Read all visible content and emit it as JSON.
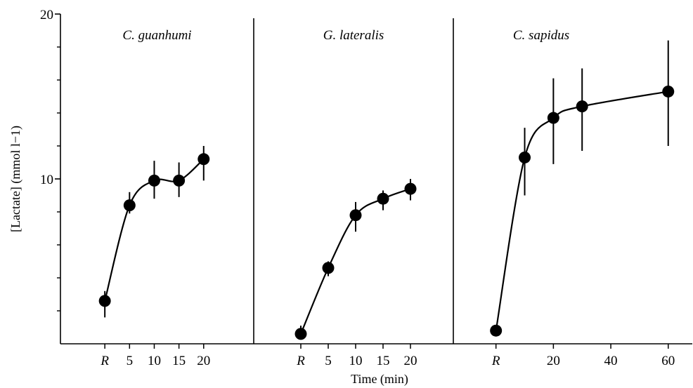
{
  "chart_data": {
    "type": "scatter",
    "ylabel": "[Lactate] (mmol l−1)",
    "xlabel": "Time (min)",
    "ylim": [
      0,
      20
    ],
    "yticks_labeled": [
      "10",
      "20"
    ],
    "y_minor_ticks": [
      2,
      4,
      6,
      8,
      12,
      14,
      16,
      18
    ],
    "grid": false,
    "fitted_curve": true,
    "panels": [
      {
        "title": "C. guanhumi",
        "xtick_labels": [
          "R",
          "5",
          "10",
          "15",
          "20"
        ],
        "xticks": [
          0,
          5,
          10,
          15,
          20
        ],
        "xlim": [
          -5,
          27
        ],
        "points": [
          {
            "x": 0,
            "y": 2.6,
            "err_low": 1.6,
            "err_high": 3.2
          },
          {
            "x": 5,
            "y": 8.4,
            "err_low": 7.9,
            "err_high": 9.2
          },
          {
            "x": 10,
            "y": 9.9,
            "err_low": 8.8,
            "err_high": 11.1
          },
          {
            "x": 15,
            "y": 9.9,
            "err_low": 8.9,
            "err_high": 11.0
          },
          {
            "x": 20,
            "y": 11.2,
            "err_low": 9.9,
            "err_high": 12.0
          }
        ]
      },
      {
        "title": "G. lateralis",
        "xtick_labels": [
          "R",
          "5",
          "10",
          "15",
          "20"
        ],
        "xticks": [
          0,
          5,
          10,
          15,
          20
        ],
        "xlim": [
          -5,
          25
        ],
        "points": [
          {
            "x": 0,
            "y": 0.6,
            "err_low": 0.3,
            "err_high": 1.1
          },
          {
            "x": 5,
            "y": 4.6,
            "err_low": 4.1,
            "err_high": 5.0
          },
          {
            "x": 10,
            "y": 7.8,
            "err_low": 6.8,
            "err_high": 8.6
          },
          {
            "x": 15,
            "y": 8.8,
            "err_low": 8.1,
            "err_high": 9.3
          },
          {
            "x": 20,
            "y": 9.4,
            "err_low": 8.7,
            "err_high": 10.0
          }
        ]
      },
      {
        "title": "C. sapidus",
        "xtick_labels": [
          "R",
          "20",
          "40",
          "60"
        ],
        "xticks": [
          0,
          20,
          40,
          60
        ],
        "xlim": [
          -8,
          63
        ],
        "points": [
          {
            "x": 0,
            "y": 0.8,
            "err_low": 0.5,
            "err_high": 1.0
          },
          {
            "x": 10,
            "y": 11.3,
            "err_low": 9.0,
            "err_high": 13.1
          },
          {
            "x": 20,
            "y": 13.7,
            "err_low": 10.9,
            "err_high": 16.1
          },
          {
            "x": 30,
            "y": 14.4,
            "err_low": 11.7,
            "err_high": 16.7
          },
          {
            "x": 60,
            "y": 15.3,
            "err_low": 12.0,
            "err_high": 18.4
          }
        ]
      }
    ]
  }
}
